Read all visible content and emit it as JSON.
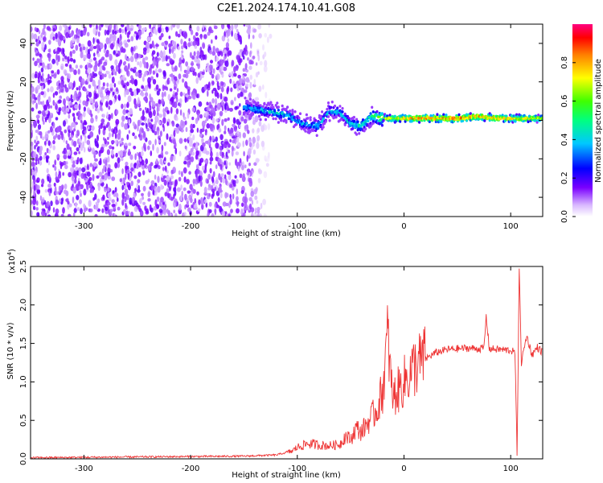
{
  "title": "C2E1.2024.174.10.41.G08",
  "colorbar": {
    "label": "Normalized spectral amplitude",
    "ticks": [
      "0.0",
      "0.2",
      "0.4",
      "0.6",
      "0.8"
    ],
    "tick_values": [
      0.0,
      0.2,
      0.4,
      0.6,
      0.8
    ]
  },
  "chart_data": [
    {
      "type": "heatmap",
      "title": "C2E1.2024.174.10.41.G08",
      "xlabel": "Height of straight line (km)",
      "ylabel": "Frequency (Hz)",
      "xlim": [
        -350,
        130
      ],
      "ylim": [
        -50,
        50
      ],
      "x_ticks": [
        -300,
        -200,
        -100,
        0,
        100
      ],
      "x_tick_labels": [
        "-300",
        "-200",
        "-100",
        "0",
        "100"
      ],
      "y_ticks": [
        -40,
        -20,
        0,
        20,
        40
      ],
      "y_tick_labels": [
        "-40",
        "-20",
        "0",
        "20",
        "40"
      ],
      "color_scale": "rainbow",
      "color_range": [
        0,
        1
      ],
      "noise_region_x": [
        -350,
        -125
      ],
      "signal_track": [
        {
          "x": -150,
          "y": 7,
          "amp": 0.45
        },
        {
          "x": -130,
          "y": 5,
          "amp": 0.5
        },
        {
          "x": -110,
          "y": 3,
          "amp": 0.5
        },
        {
          "x": -95,
          "y": -2,
          "amp": 0.45
        },
        {
          "x": -80,
          "y": -3,
          "amp": 0.5
        },
        {
          "x": -70,
          "y": 5,
          "amp": 0.45
        },
        {
          "x": -60,
          "y": 4,
          "amp": 0.5
        },
        {
          "x": -50,
          "y": -2,
          "amp": 0.5
        },
        {
          "x": -40,
          "y": -3,
          "amp": 0.55
        },
        {
          "x": -30,
          "y": 2,
          "amp": 0.6
        },
        {
          "x": -15,
          "y": 1,
          "amp": 0.8
        },
        {
          "x": 0,
          "y": 1,
          "amp": 0.9
        },
        {
          "x": 20,
          "y": 1,
          "amp": 0.95
        },
        {
          "x": 50,
          "y": 1,
          "amp": 0.95
        },
        {
          "x": 70,
          "y": 2,
          "amp": 0.9
        },
        {
          "x": 90,
          "y": 1,
          "amp": 0.9
        },
        {
          "x": 110,
          "y": 1,
          "amp": 0.85
        },
        {
          "x": 130,
          "y": 1,
          "amp": 0.8
        }
      ]
    },
    {
      "type": "line",
      "xlabel": "Height of straight line (km)",
      "ylabel": "SNR (10 * v/v)",
      "y_multiplier": "(x10",
      "y_multiplier_exp": "4",
      "y_multiplier_close": ")",
      "xlim": [
        -350,
        130
      ],
      "ylim": [
        0,
        25000
      ],
      "x_ticks": [
        -300,
        -200,
        -100,
        0,
        100
      ],
      "x_tick_labels": [
        "-300",
        "-200",
        "-100",
        "0",
        "100"
      ],
      "y_ticks": [
        0,
        5000,
        10000,
        15000,
        20000,
        25000
      ],
      "y_tick_labels": [
        "0.0",
        "0.5",
        "1.0",
        "1.5",
        "2.0",
        "2.5"
      ],
      "series": [
        {
          "color": "#ee3333",
          "x": [
            -350,
            -300,
            -250,
            -200,
            -150,
            -120,
            -105,
            -100,
            -90,
            -80,
            -70,
            -60,
            -55,
            -50,
            -45,
            -40,
            -30,
            -25,
            -20,
            -15,
            -12,
            -10,
            -5,
            0,
            5,
            10,
            20,
            30,
            40,
            50,
            60,
            70,
            75,
            77,
            80,
            90,
            100,
            104,
            106,
            108,
            110,
            115,
            120,
            125,
            130
          ],
          "y": [
            150,
            200,
            250,
            300,
            350,
            500,
            1000,
            1500,
            2000,
            1800,
            1700,
            1900,
            3000,
            2500,
            4000,
            3500,
            5500,
            6500,
            9000,
            16000,
            9500,
            8000,
            9000,
            10000,
            11000,
            12000,
            13000,
            13800,
            14200,
            14300,
            14400,
            14300,
            14400,
            18500,
            14300,
            14200,
            14100,
            13800,
            500,
            25000,
            12500,
            16000,
            13500,
            14500,
            13800
          ]
        }
      ]
    }
  ]
}
